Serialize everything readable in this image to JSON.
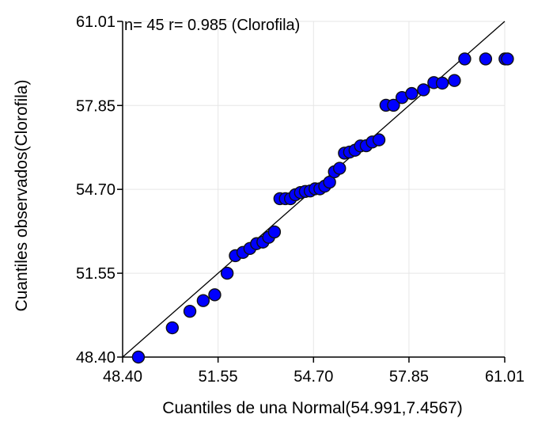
{
  "chart_data": {
    "type": "scatter",
    "annotation": "n= 45 r= 0.985 (Clorofila)",
    "xlabel": "Cuantiles de una Normal(54.991,7.4567)",
    "ylabel": "Cuantiles observados(Clorofila)",
    "xlim": [
      48.4,
      61.01
    ],
    "ylim": [
      48.4,
      61.01
    ],
    "x_ticks": [
      "48.40",
      "51.55",
      "54.70",
      "57.85",
      "61.01"
    ],
    "y_ticks": [
      "48.40",
      "51.55",
      "54.70",
      "57.85",
      "61.01"
    ],
    "grid": true,
    "reference_line": "y = x",
    "point_color": "#0000ff",
    "x": [
      48.92,
      50.04,
      50.62,
      51.06,
      51.44,
      51.85,
      52.12,
      52.37,
      52.6,
      52.82,
      53.03,
      53.22,
      53.41,
      53.59,
      53.77,
      53.94,
      54.1,
      54.27,
      54.43,
      54.59,
      54.75,
      54.91,
      55.07,
      55.23,
      55.39,
      55.56,
      55.72,
      55.89,
      56.07,
      56.25,
      56.44,
      56.64,
      56.86,
      57.09,
      57.34,
      57.62,
      57.94,
      58.33,
      58.67,
      58.95,
      59.35,
      59.69,
      60.38,
      61.02,
      61.1
    ],
    "y": [
      48.4,
      49.5,
      50.12,
      50.52,
      50.74,
      51.55,
      52.21,
      52.33,
      52.48,
      52.66,
      52.72,
      52.9,
      53.1,
      54.35,
      54.35,
      54.35,
      54.5,
      54.58,
      54.62,
      54.64,
      54.72,
      54.72,
      54.82,
      54.97,
      55.36,
      55.49,
      56.06,
      56.1,
      56.17,
      56.33,
      56.34,
      56.48,
      56.56,
      57.86,
      57.86,
      58.15,
      58.3,
      58.44,
      58.71,
      58.69,
      58.79,
      59.6,
      59.6,
      59.6,
      59.6
    ]
  }
}
